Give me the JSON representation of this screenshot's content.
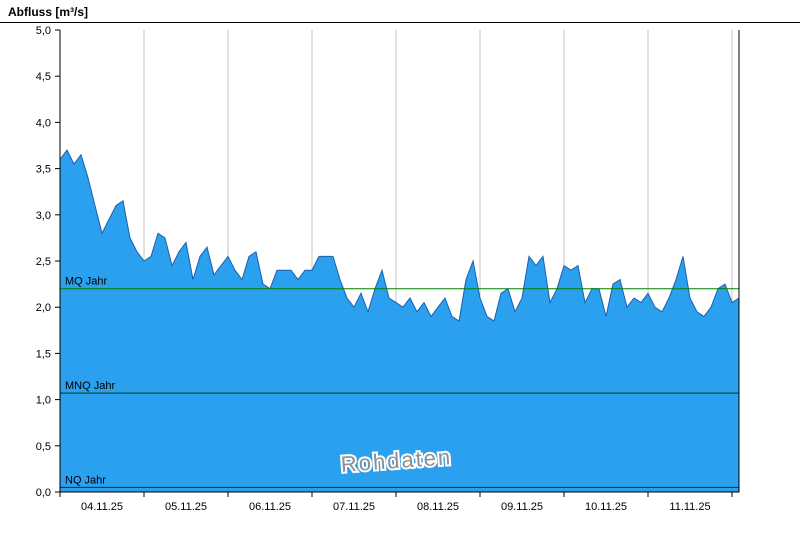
{
  "window": {
    "title": "Abfluss [m³/s]"
  },
  "chart_data": {
    "type": "area",
    "title": "Abfluss [m³/s]",
    "ylabel": "Abfluss [m³/s]",
    "xlabel": "",
    "ylim": [
      0,
      5
    ],
    "ytick_step": 0.5,
    "ytick_labels": [
      "0,0",
      "0,5",
      "1,0",
      "1,5",
      "2,0",
      "2,5",
      "3,0",
      "3,5",
      "4,0",
      "4,5",
      "5,0"
    ],
    "x_day_labels": [
      "04.11.25",
      "05.11.25",
      "06.11.25",
      "07.11.25",
      "08.11.25",
      "09.11.25",
      "10.11.25",
      "11.11.25"
    ],
    "grid": "vertical-day-lines",
    "legend": "none",
    "series": {
      "name": "Abfluss Rohdaten",
      "unit": "m³/s",
      "step_days": 0.0833333,
      "values": [
        3.6,
        3.7,
        3.55,
        3.65,
        3.4,
        3.1,
        2.8,
        2.95,
        3.1,
        3.15,
        2.75,
        2.6,
        2.5,
        2.55,
        2.8,
        2.75,
        2.45,
        2.6,
        2.7,
        2.3,
        2.55,
        2.65,
        2.35,
        2.45,
        2.55,
        2.4,
        2.3,
        2.55,
        2.6,
        2.25,
        2.2,
        2.4,
        2.4,
        2.4,
        2.3,
        2.4,
        2.4,
        2.55,
        2.55,
        2.55,
        2.3,
        2.1,
        2.0,
        2.15,
        1.95,
        2.2,
        2.4,
        2.1,
        2.05,
        2.0,
        2.1,
        1.95,
        2.05,
        1.9,
        2.0,
        2.1,
        1.9,
        1.85,
        2.3,
        2.5,
        2.1,
        1.9,
        1.85,
        2.15,
        2.2,
        1.95,
        2.1,
        2.55,
        2.45,
        2.55,
        2.05,
        2.2,
        2.45,
        2.4,
        2.45,
        2.05,
        2.2,
        2.2,
        1.9,
        2.25,
        2.3,
        2.0,
        2.1,
        2.05,
        2.15,
        2.0,
        1.95,
        2.1,
        2.3,
        2.55,
        2.1,
        1.95,
        1.9,
        2.0,
        2.2,
        2.25,
        2.05,
        2.1
      ]
    },
    "reference_lines": [
      {
        "id": "mq",
        "label": "MQ Jahr",
        "value": 2.2,
        "color": "#008000"
      },
      {
        "id": "mnq",
        "label": "MNQ Jahr",
        "value": 1.07,
        "color": "#004000"
      },
      {
        "id": "nq",
        "label": "NQ Jahr",
        "value": 0.05,
        "color": "#004000"
      }
    ],
    "watermark": "Rohdaten",
    "colors": {
      "fill": "#2aa0ee",
      "stroke": "#1c5fae",
      "grid": "#c6c6c6",
      "axis": "#000000",
      "watermark_fill": "#8f8f8f",
      "watermark_halo": "#ffffff"
    }
  }
}
